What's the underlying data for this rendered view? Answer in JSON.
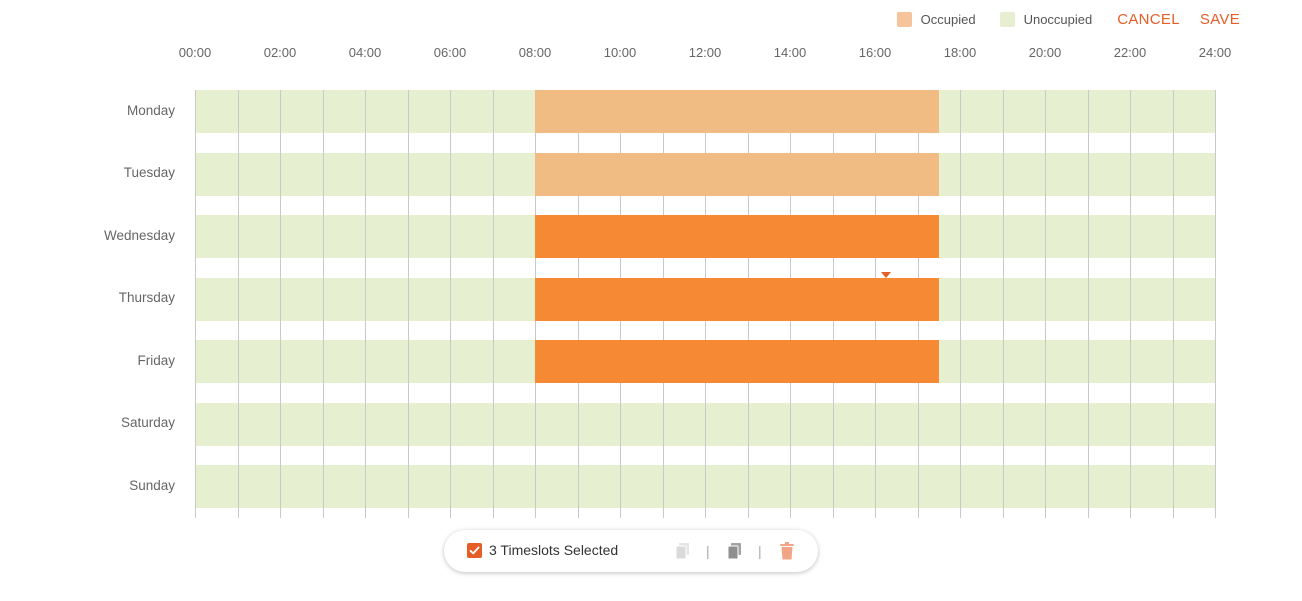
{
  "legend": {
    "occupied_label": "Occupied",
    "unoccupied_label": "Unoccupied",
    "occupied_color": "#f1bb84",
    "unoccupied_color": "#e6efd0"
  },
  "actions": {
    "cancel_label": "CANCEL",
    "save_label": "SAVE",
    "accent_color": "#e55d27"
  },
  "time_axis": [
    "00:00",
    "02:00",
    "04:00",
    "06:00",
    "08:00",
    "10:00",
    "12:00",
    "14:00",
    "16:00",
    "18:00",
    "20:00",
    "22:00",
    "24:00"
  ],
  "schedule": [
    {
      "day": "Monday",
      "slots": [
        {
          "start_hour": 8,
          "end_hour": 17.5,
          "state": "occupied"
        }
      ]
    },
    {
      "day": "Tuesday",
      "slots": [
        {
          "start_hour": 8,
          "end_hour": 17.5,
          "state": "occupied"
        }
      ]
    },
    {
      "day": "Wednesday",
      "slots": [
        {
          "start_hour": 8,
          "end_hour": 17.5,
          "state": "selected"
        }
      ]
    },
    {
      "day": "Thursday",
      "slots": [
        {
          "start_hour": 8,
          "end_hour": 17.5,
          "state": "selected"
        }
      ]
    },
    {
      "day": "Friday",
      "slots": [
        {
          "start_hour": 8,
          "end_hour": 17.5,
          "state": "selected"
        }
      ]
    },
    {
      "day": "Saturday",
      "slots": []
    },
    {
      "day": "Sunday",
      "slots": []
    }
  ],
  "selection_bar": {
    "checked": true,
    "label": "3 Timeslots Selected",
    "icons": [
      "copy-icon",
      "paste-icon",
      "trash-icon"
    ]
  }
}
